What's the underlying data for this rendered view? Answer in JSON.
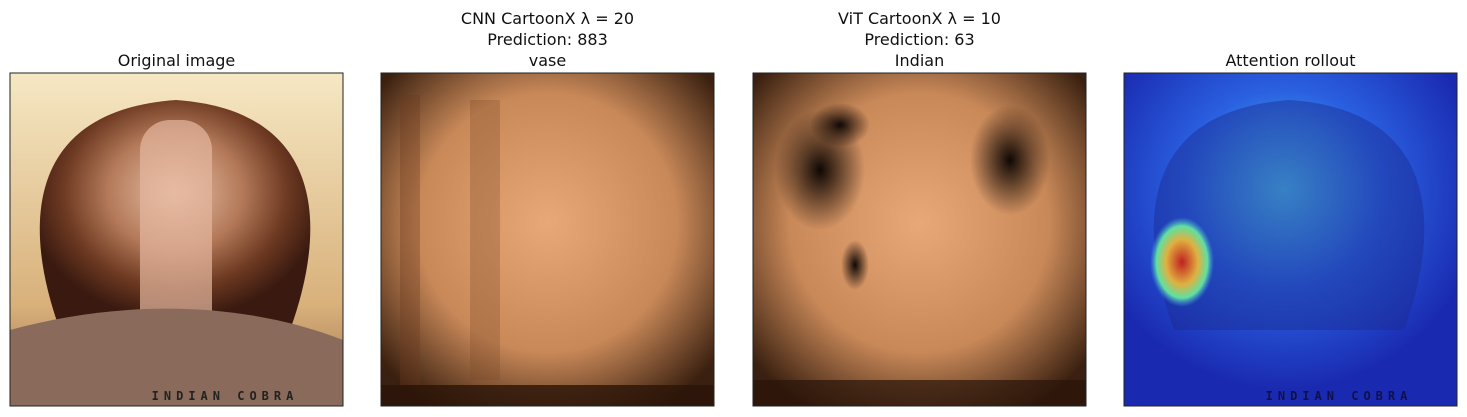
{
  "panels": [
    {
      "title": [
        "Original image"
      ],
      "image_text": "INDIAN COBRA"
    },
    {
      "title": [
        "CNN CartoonX λ = 20",
        "Prediction: 883",
        "vase"
      ]
    },
    {
      "title": [
        "ViT CartoonX λ = 10",
        "Prediction: 63",
        "Indian"
      ]
    },
    {
      "title": [
        "Attention rollout"
      ],
      "image_text": "INDIAN COBRA"
    }
  ]
}
